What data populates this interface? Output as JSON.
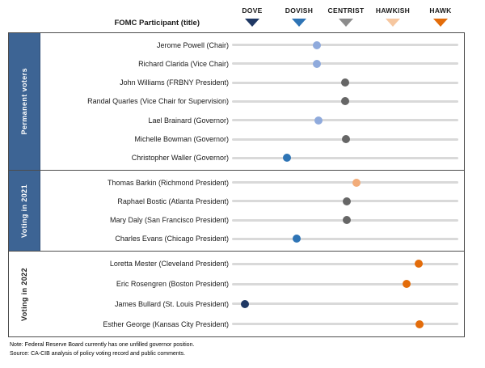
{
  "header": {
    "participant_label": "FOMC Participant (title)",
    "legend": {
      "items": [
        {
          "label": "DOVE",
          "color": "#1F3864"
        },
        {
          "label": "DOVISH",
          "color": "#2E74B5"
        },
        {
          "label": "CENTRIST",
          "color": "#8C8C8C"
        },
        {
          "label": "HAWKISH",
          "color": "#F6C7A0"
        },
        {
          "label": "HAWK",
          "color": "#E36C0A"
        }
      ]
    }
  },
  "palette": {
    "dove": "#1F3864",
    "dovish": "#2E74B5",
    "dovish_light": "#8FAADC",
    "centrist": "#666666",
    "hawkish_light": "#F2AC79",
    "hawk": "#E36C0A",
    "sidebar_blue": "#3D6494",
    "track_gray": "#D9D9D9"
  },
  "sections": [
    {
      "label": "Permanent voters",
      "style": "blue",
      "rows": [
        {
          "label": "Jerome Powell (Chair)",
          "stance": "dovish_light",
          "pos": 0.375
        },
        {
          "label": "Richard Clarida (Vice Chair)",
          "stance": "dovish_light",
          "pos": 0.375
        },
        {
          "label": "John Williams (FRBNY President)",
          "stance": "centrist",
          "pos": 0.5
        },
        {
          "label": "Randal Quarles (Vice Chair for Supervision)",
          "stance": "centrist",
          "pos": 0.5
        },
        {
          "label": "Lael Brainard (Governor)",
          "stance": "dovish_light",
          "pos": 0.382
        },
        {
          "label": "Michelle Bowman (Governor)",
          "stance": "centrist",
          "pos": 0.504
        },
        {
          "label": "Christopher Waller (Governor)",
          "stance": "dovish",
          "pos": 0.243
        }
      ]
    },
    {
      "label": "Voting in 2021",
      "style": "blue",
      "rows": [
        {
          "label": "Thomas Barkin (Richmond President)",
          "stance": "hawkish_light",
          "pos": 0.55
        },
        {
          "label": "Raphael Bostic (Atlanta President)",
          "stance": "centrist",
          "pos": 0.507
        },
        {
          "label": "Mary Daly (San Francisco President)",
          "stance": "centrist",
          "pos": 0.507
        },
        {
          "label": "Charles Evans (Chicago President)",
          "stance": "dovish",
          "pos": 0.286
        }
      ]
    },
    {
      "label": "Voting in 2022",
      "style": "plain",
      "rows": [
        {
          "label": "Loretta Mester (Cleveland President)",
          "stance": "hawk",
          "pos": 0.825
        },
        {
          "label": "Eric Rosengren (Boston President)",
          "stance": "hawk",
          "pos": 0.771
        },
        {
          "label": "James Bullard (St. Louis President)",
          "stance": "dove",
          "pos": 0.057
        },
        {
          "label": "Esther George (Kansas City President)",
          "stance": "hawk",
          "pos": 0.829
        }
      ]
    }
  ],
  "footer": {
    "note": "Note: Federal Reserve Board currently has one unfilled  governor position.",
    "source": "Source: CA-CIB analysis of policy voting record and public comments."
  },
  "chart_data": {
    "type": "scatter",
    "title": "",
    "x_axis": {
      "categories": [
        "DOVE",
        "DOVISH",
        "CENTRIST",
        "HAWKISH",
        "HAWK"
      ],
      "values": [
        -2,
        -1,
        0,
        1,
        2
      ]
    },
    "legend_position": "top",
    "grid": false,
    "groups": [
      "Permanent voters",
      "Voting in 2021",
      "Voting in 2022"
    ],
    "points": [
      {
        "name": "Jerome Powell (Chair)",
        "group": "Permanent voters",
        "stance": "dovish_light",
        "value": -0.6
      },
      {
        "name": "Richard Clarida (Vice Chair)",
        "group": "Permanent voters",
        "stance": "dovish_light",
        "value": -0.6
      },
      {
        "name": "John Williams (FRBNY President)",
        "group": "Permanent voters",
        "stance": "centrist",
        "value": 0
      },
      {
        "name": "Randal Quarles (Vice Chair for Supervision)",
        "group": "Permanent voters",
        "stance": "centrist",
        "value": 0
      },
      {
        "name": "Lael Brainard (Governor)",
        "group": "Permanent voters",
        "stance": "dovish_light",
        "value": -0.6
      },
      {
        "name": "Michelle Bowman (Governor)",
        "group": "Permanent voters",
        "stance": "centrist",
        "value": 0
      },
      {
        "name": "Christopher Waller (Governor)",
        "group": "Permanent voters",
        "stance": "dovish",
        "value": -1.25
      },
      {
        "name": "Thomas Barkin (Richmond President)",
        "group": "Voting in 2021",
        "stance": "hawkish_light",
        "value": 0.2
      },
      {
        "name": "Raphael Bostic (Atlanta President)",
        "group": "Voting in 2021",
        "stance": "centrist",
        "value": 0
      },
      {
        "name": "Mary Daly (San Francisco President)",
        "group": "Voting in 2021",
        "stance": "centrist",
        "value": 0
      },
      {
        "name": "Charles Evans (Chicago President)",
        "group": "Voting in 2021",
        "stance": "dovish",
        "value": -1.05
      },
      {
        "name": "Loretta Mester (Cleveland President)",
        "group": "Voting in 2022",
        "stance": "hawk",
        "value": 1.55
      },
      {
        "name": "Eric Rosengren (Boston President)",
        "group": "Voting in 2022",
        "stance": "hawk",
        "value": 1.3
      },
      {
        "name": "James Bullard (St. Louis President)",
        "group": "Voting in 2022",
        "stance": "dove",
        "value": -2.15
      },
      {
        "name": "Esther George (Kansas City President)",
        "group": "Voting in 2022",
        "stance": "hawk",
        "value": 1.55
      }
    ]
  }
}
